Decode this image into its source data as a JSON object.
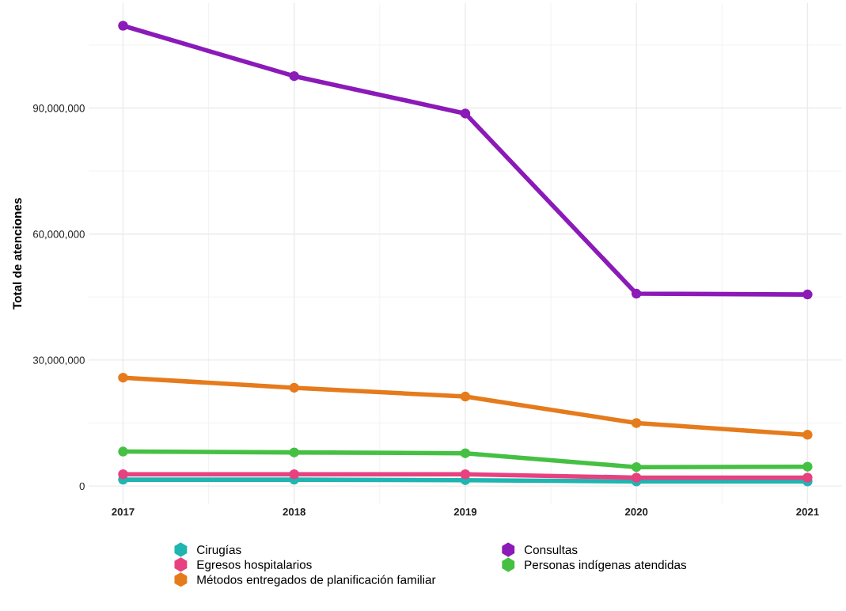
{
  "chart_data": {
    "type": "line",
    "ylabel": "Total de atenciones",
    "x": [
      2017,
      2018,
      2019,
      2020,
      2021
    ],
    "xlim": [
      2016.8,
      2021.2
    ],
    "xticks": [
      2017,
      2018,
      2019,
      2020,
      2021
    ],
    "ylim": [
      -4300000,
      115000000
    ],
    "yticks": [
      {
        "value": 0,
        "label": "0"
      },
      {
        "value": 30000000,
        "label": "30,000,000"
      },
      {
        "value": 60000000,
        "label": "60,000,000"
      },
      {
        "value": 90000000,
        "label": "90,000,000"
      }
    ],
    "grid": true,
    "legend": "bottom",
    "marker": "circle",
    "line_style": "solid",
    "series": [
      {
        "name": "Cirugías",
        "color": "#1fb5b0",
        "values": [
          1500000,
          1500000,
          1400000,
          1100000,
          1100000
        ]
      },
      {
        "name": "Egresos hospitalarios",
        "color": "#e8417f",
        "values": [
          2800000,
          2800000,
          2800000,
          2000000,
          2000000
        ]
      },
      {
        "name": "Métodos entregados de planificación familiar",
        "color": "#e57b1c",
        "values": [
          25800000,
          23400000,
          21300000,
          15000000,
          12200000
        ]
      },
      {
        "name": "Consultas",
        "color": "#8b1ab8",
        "values": [
          109600000,
          97600000,
          88700000,
          45800000,
          45600000
        ]
      },
      {
        "name": "Personas indígenas atendidas",
        "color": "#45c043",
        "values": [
          8200000,
          8000000,
          7800000,
          4500000,
          4600000
        ]
      }
    ]
  }
}
